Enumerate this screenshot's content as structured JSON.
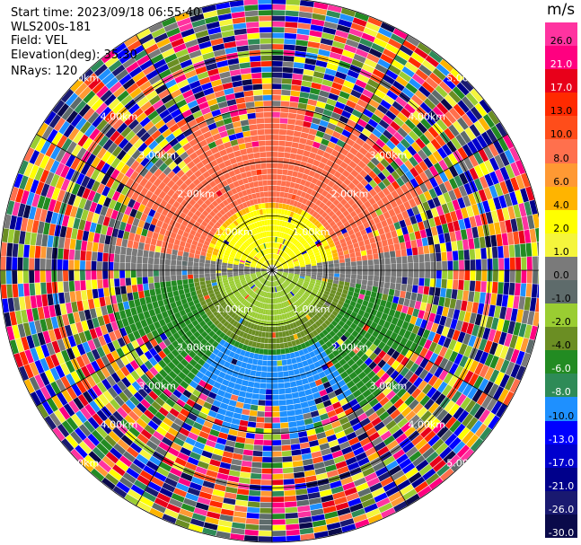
{
  "header": {
    "start_time": "Start time: 2023/09/18 06:55:40",
    "instrument": "WLS200s-181",
    "field": "Field: VEL",
    "elevation": "Elevation(deg): 35.30",
    "nrays": "NRays: 120"
  },
  "colorbar": {
    "unit": "m/s",
    "labels": [
      "26.0",
      "21.0",
      "17.0",
      "13.0",
      "10.0",
      "8.0",
      "6.0",
      "4.0",
      "2.0",
      "1.0",
      "0.0",
      "-1.0",
      "-2.0",
      "-4.0",
      "-6.0",
      "-8.0",
      "-10.0",
      "-13.0",
      "-17.0",
      "-21.0",
      "-26.0",
      "-30.0"
    ],
    "colors": [
      "#ff33a0",
      "#ff0080",
      "#e8001a",
      "#ff2a00",
      "#ff4d1a",
      "#ff704d",
      "#ff9933",
      "#ffb400",
      "#ffff00",
      "#f5f53c",
      "#7a7a7a",
      "#5e6b6b",
      "#9acd32",
      "#6b8e23",
      "#228b22",
      "#2e8b57",
      "#1e90ff",
      "#0000ff",
      "#0000cd",
      "#00008b",
      "#191970",
      "#0a0a4a"
    ]
  },
  "range_labels": [
    "1.00km",
    "2.00km",
    "3.00km",
    "4.00km",
    "5.00km"
  ],
  "chart_data": {
    "type": "heatmap",
    "projection": "polar PPI",
    "field": "VEL",
    "unit": "m/s",
    "rays": 120,
    "range_rings_km": [
      1.0,
      2.0,
      3.0,
      4.0,
      5.0
    ],
    "max_range_km": 5.0,
    "color_levels_ms": [
      26.0,
      21.0,
      17.0,
      13.0,
      10.0,
      8.0,
      6.0,
      4.0,
      2.0,
      1.0,
      0.0,
      -1.0,
      -2.0,
      -4.0,
      -6.0,
      -8.0,
      -10.0,
      -13.0,
      -17.0,
      -21.0,
      -26.0,
      -30.0
    ],
    "velocity_by_sector": [
      {
        "sector": "north",
        "range_km": [
          0.5,
          2.5
        ],
        "velocity_ms": 8.0
      },
      {
        "sector": "north",
        "range_km": [
          0.3,
          1.0
        ],
        "velocity_ms": 2.0
      },
      {
        "sector": "east-west",
        "range_km": [
          0.0,
          2.0
        ],
        "velocity_ms": 0.0
      },
      {
        "sector": "south",
        "range_km": [
          0.3,
          2.0
        ],
        "velocity_ms": -4.0
      },
      {
        "sector": "south",
        "range_km": [
          1.5,
          2.5
        ],
        "velocity_ms": -10.0
      }
    ],
    "outer_noise_range_km": [
      2.5,
      5.0
    ],
    "spoke_interval_deg": 30,
    "grid": true
  }
}
